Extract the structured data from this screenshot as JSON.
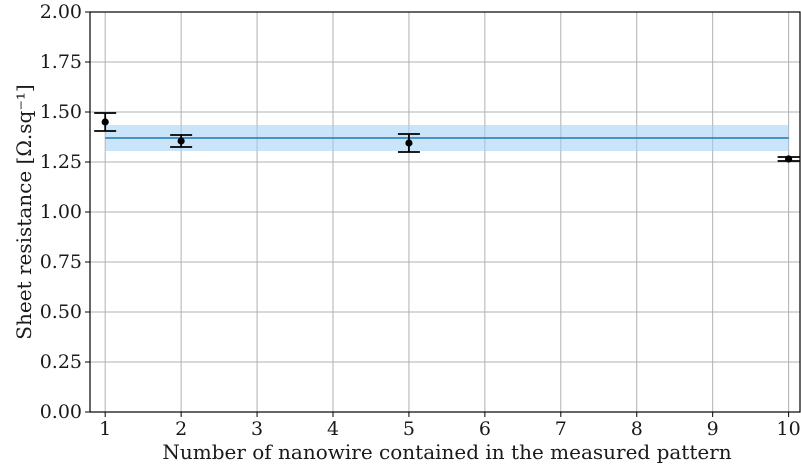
{
  "chart_data": {
    "type": "scatter",
    "xlabel": "Number of nanowire contained in the measured pattern",
    "ylabel": "Sheet resistance [Ω.sq⁻¹]",
    "xlim": [
      0.8,
      10.15
    ],
    "ylim": [
      0,
      2.0
    ],
    "x_ticks": [
      1,
      2,
      3,
      4,
      5,
      6,
      7,
      8,
      9,
      10
    ],
    "y_ticks": [
      0.0,
      0.25,
      0.5,
      0.75,
      1.0,
      1.25,
      1.5,
      1.75,
      2.0
    ],
    "y_tick_labels": [
      "0.00",
      "0.25",
      "0.50",
      "0.75",
      "1.00",
      "1.25",
      "1.50",
      "1.75",
      "2.00"
    ],
    "grid": true,
    "series": [
      {
        "type": "errorbar",
        "color": "#000000",
        "points": [
          {
            "x": 1,
            "y": 1.45,
            "err_low": 1.405,
            "err_high": 1.495
          },
          {
            "x": 2,
            "y": 1.355,
            "err_low": 1.325,
            "err_high": 1.385
          },
          {
            "x": 5,
            "y": 1.345,
            "err_low": 1.3,
            "err_high": 1.39
          },
          {
            "x": 10,
            "y": 1.265,
            "err_low": 1.255,
            "err_high": 1.275
          }
        ]
      },
      {
        "type": "mean-band",
        "color": "#1f77b4",
        "band_color": "#9fd0f5",
        "mean": 1.37,
        "band_low": 1.305,
        "band_high": 1.435,
        "x_range": [
          1,
          10
        ]
      }
    ]
  }
}
